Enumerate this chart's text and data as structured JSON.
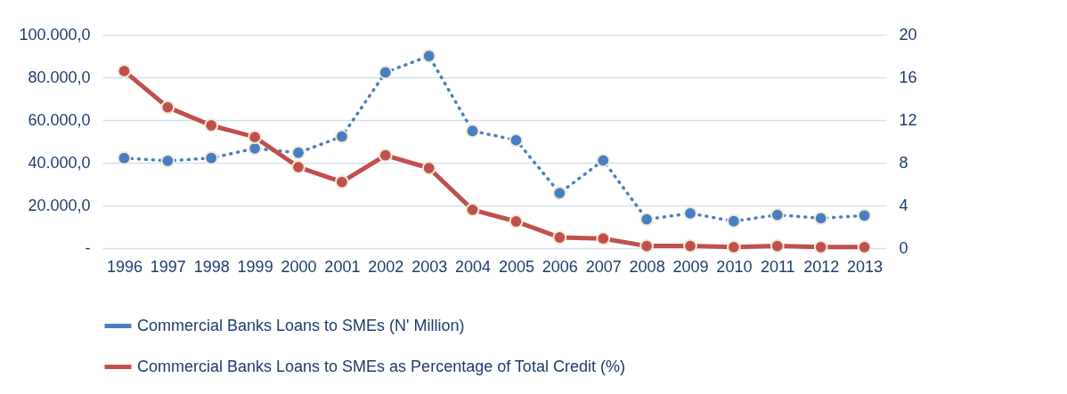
{
  "chart_data": {
    "type": "line",
    "categories": [
      "1996",
      "1997",
      "1998",
      "1999",
      "2000",
      "2001",
      "2002",
      "2003",
      "2004",
      "2005",
      "2006",
      "2007",
      "2008",
      "2009",
      "2010",
      "2011",
      "2012",
      "2013"
    ],
    "series": [
      {
        "name": "Commercial Banks Loans to SMEs (N' Million)",
        "color": "#4a7ec2",
        "line_style": "dotted",
        "values": [
          42200,
          40900,
          42200,
          46700,
          44700,
          52300,
          82300,
          90000,
          54900,
          50600,
          25800,
          41100,
          13500,
          16300,
          12600,
          15600,
          14000,
          15300
        ]
      },
      {
        "name": "Commercial Banks Loans to SMEs as Percentage of Total Credit (%)",
        "color": "#c0504d",
        "line_style": "solid",
        "axis": "y2",
        "values": [
          16.6,
          13.2,
          11.5,
          10.4,
          7.6,
          6.2,
          8.7,
          7.5,
          3.6,
          2.5,
          1.0,
          0.9,
          0.2,
          0.2,
          0.1,
          0.2,
          0.1,
          0.1
        ]
      }
    ],
    "ylim": [
      0,
      100000
    ],
    "yticks": [
      {
        "value": 0,
        "label": "-"
      },
      {
        "value": 20000,
        "label": "20.000,0"
      },
      {
        "value": 40000,
        "label": "40.000,0"
      },
      {
        "value": 60000,
        "label": "60.000,0"
      },
      {
        "value": 80000,
        "label": "80.000,0"
      },
      {
        "value": 100000,
        "label": "100.000,0"
      }
    ],
    "y2lim": [
      0,
      20
    ],
    "y2ticks": [
      0,
      4,
      8,
      12,
      16,
      20
    ],
    "grid": "y",
    "legend": "bottom",
    "marker": "circle"
  }
}
